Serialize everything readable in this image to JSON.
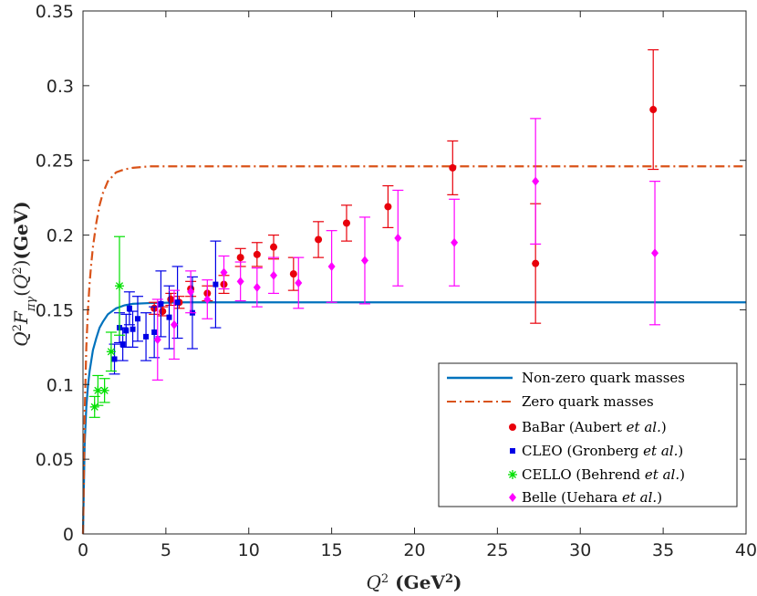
{
  "chart_data": {
    "type": "scatter",
    "xlabel": "Q² (GeV²)",
    "ylabel": "Q²F_πγ(Q²)(GeV)",
    "xlim": [
      0,
      40
    ],
    "ylim": [
      0,
      0.35
    ],
    "xticks": [
      0,
      5,
      10,
      15,
      20,
      25,
      30,
      35,
      40
    ],
    "yticks": [
      0,
      0.05,
      0.1,
      0.15,
      0.2,
      0.25,
      0.3,
      0.35
    ],
    "xtick_labels": [
      "0",
      "5",
      "10",
      "15",
      "20",
      "25",
      "30",
      "35",
      "40"
    ],
    "ytick_labels": [
      "0",
      "0.05",
      "0.1",
      "0.15",
      "0.2",
      "0.25",
      "0.3",
      "0.35"
    ],
    "grid": false,
    "legend_position": "bottom-right",
    "series": [
      {
        "name": "Non-zero quark masses",
        "kind": "line",
        "color": "#0072BD",
        "dash": "solid",
        "x": [
          0,
          0.05,
          0.1,
          0.2,
          0.3,
          0.4,
          0.5,
          0.6,
          0.8,
          1.0,
          1.2,
          1.5,
          2.0,
          2.5,
          3.0,
          4.0,
          6.0,
          10.0,
          20.0,
          30.0,
          40.0
        ],
        "y": [
          0,
          0.03,
          0.06,
          0.085,
          0.099,
          0.109,
          0.116,
          0.123,
          0.131,
          0.138,
          0.142,
          0.147,
          0.151,
          0.153,
          0.154,
          0.1545,
          0.155,
          0.155,
          0.155,
          0.155,
          0.155
        ]
      },
      {
        "name": "Zero quark masses",
        "kind": "line",
        "color": "#D95319",
        "dash": "dashdot",
        "x": [
          0,
          0.05,
          0.1,
          0.2,
          0.3,
          0.4,
          0.5,
          0.6,
          0.8,
          1.0,
          1.2,
          1.5,
          2.0,
          2.5,
          3.0,
          4.0,
          6.0,
          10.0,
          20.0,
          30.0,
          40.0
        ],
        "y": [
          0,
          0.035,
          0.08,
          0.125,
          0.15,
          0.168,
          0.181,
          0.192,
          0.208,
          0.22,
          0.228,
          0.236,
          0.242,
          0.244,
          0.245,
          0.246,
          0.246,
          0.246,
          0.246,
          0.246,
          0.246
        ]
      },
      {
        "name": "BaBar (Aubert et al.)",
        "kind": "points",
        "marker": "circle",
        "color": "#E8000B",
        "points": [
          [
            4.3,
            0.151,
            0.004
          ],
          [
            4.8,
            0.149,
            0.003
          ],
          [
            5.3,
            0.157,
            0.004
          ],
          [
            5.8,
            0.155,
            0.004
          ],
          [
            6.5,
            0.164,
            0.005
          ],
          [
            7.5,
            0.161,
            0.005
          ],
          [
            8.5,
            0.167,
            0.006
          ],
          [
            9.5,
            0.185,
            0.006
          ],
          [
            10.5,
            0.187,
            0.008
          ],
          [
            11.5,
            0.192,
            0.008
          ],
          [
            12.7,
            0.174,
            0.011
          ],
          [
            14.2,
            0.197,
            0.012
          ],
          [
            15.9,
            0.208,
            0.012
          ],
          [
            18.4,
            0.219,
            0.014
          ],
          [
            22.3,
            0.245,
            0.018
          ],
          [
            27.3,
            0.181,
            0.04
          ],
          [
            34.4,
            0.284,
            0.04
          ]
        ]
      },
      {
        "name": "CLEO (Gronberg et al.)",
        "kind": "points",
        "marker": "square",
        "color": "#0000E6",
        "points": [
          [
            1.9,
            0.117,
            0.01
          ],
          [
            2.2,
            0.138,
            0.01
          ],
          [
            2.4,
            0.127,
            0.011
          ],
          [
            2.6,
            0.136,
            0.011
          ],
          [
            2.8,
            0.151,
            0.011
          ],
          [
            3.0,
            0.137,
            0.012
          ],
          [
            3.3,
            0.144,
            0.015
          ],
          [
            3.8,
            0.132,
            0.016
          ],
          [
            4.3,
            0.135,
            0.017
          ],
          [
            4.7,
            0.154,
            0.022
          ],
          [
            5.2,
            0.145,
            0.021
          ],
          [
            5.7,
            0.155,
            0.024
          ],
          [
            6.6,
            0.148,
            0.024
          ],
          [
            8.0,
            0.167,
            0.029
          ]
        ]
      },
      {
        "name": "CELLO (Behrend et al.)",
        "kind": "points",
        "marker": "asterisk",
        "color": "#00E000",
        "points": [
          [
            0.7,
            0.085,
            0.007
          ],
          [
            0.9,
            0.096,
            0.01
          ],
          [
            1.3,
            0.096,
            0.008
          ],
          [
            1.7,
            0.122,
            0.013
          ],
          [
            2.2,
            0.166,
            0.033
          ]
        ]
      },
      {
        "name": "Belle (Uehara et al.)",
        "kind": "points",
        "marker": "diamond",
        "color": "#FF00FF",
        "points": [
          [
            4.5,
            0.13,
            0.027
          ],
          [
            5.5,
            0.14,
            0.023
          ],
          [
            6.5,
            0.162,
            0.014
          ],
          [
            7.5,
            0.157,
            0.013
          ],
          [
            8.5,
            0.175,
            0.011
          ],
          [
            9.5,
            0.169,
            0.013
          ],
          [
            10.5,
            0.165,
            0.013
          ],
          [
            11.5,
            0.173,
            0.012
          ],
          [
            13.0,
            0.168,
            0.017
          ],
          [
            15.0,
            0.179,
            0.024
          ],
          [
            17.0,
            0.183,
            0.029
          ],
          [
            19.0,
            0.198,
            0.032
          ],
          [
            22.4,
            0.195,
            0.029
          ],
          [
            27.3,
            0.236,
            0.042
          ],
          [
            34.5,
            0.188,
            0.048
          ]
        ]
      }
    ]
  },
  "legend": {
    "items": [
      {
        "label": "Non-zero quark masses",
        "author": "",
        "suffix": ""
      },
      {
        "label": "Zero quark masses",
        "author": "",
        "suffix": ""
      },
      {
        "label": "BaBar (Aubert ",
        "author": "et al.",
        "suffix": ")"
      },
      {
        "label": "CLEO (Gronberg ",
        "author": "et al.",
        "suffix": ")"
      },
      {
        "label": "CELLO (Behrend ",
        "author": "et al.",
        "suffix": ")"
      },
      {
        "label": "Belle (Uehara ",
        "author": "et al.",
        "suffix": ")"
      }
    ]
  }
}
